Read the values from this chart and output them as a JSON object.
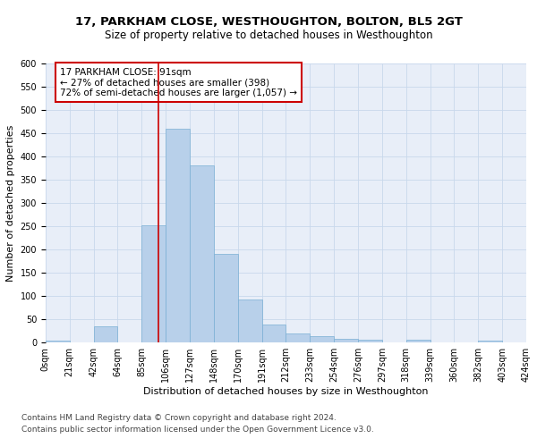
{
  "title": "17, PARKHAM CLOSE, WESTHOUGHTON, BOLTON, BL5 2GT",
  "subtitle": "Size of property relative to detached houses in Westhoughton",
  "xlabel": "Distribution of detached houses by size in Westhoughton",
  "ylabel": "Number of detached properties",
  "footnote1": "Contains HM Land Registry data © Crown copyright and database right 2024.",
  "footnote2": "Contains public sector information licensed under the Open Government Licence v3.0.",
  "annotation_line1": "17 PARKHAM CLOSE: 91sqm",
  "annotation_line2": "← 27% of detached houses are smaller (398)",
  "annotation_line3": "72% of semi-detached houses are larger (1,057) →",
  "bar_values": [
    5,
    0,
    35,
    0,
    252,
    460,
    380,
    190,
    92,
    38,
    20,
    13,
    8,
    6,
    0,
    6,
    0,
    0,
    5,
    0
  ],
  "bar_labels": [
    "0sqm",
    "21sqm",
    "42sqm",
    "64sqm",
    "85sqm",
    "106sqm",
    "127sqm",
    "148sqm",
    "170sqm",
    "191sqm",
    "212sqm",
    "233sqm",
    "254sqm",
    "276sqm",
    "297sqm",
    "318sqm",
    "339sqm",
    "360sqm",
    "382sqm",
    "403sqm",
    "424sqm"
  ],
  "bar_color": "#b8d0ea",
  "bar_edge_color": "#7aafd4",
  "vline_color": "#cc0000",
  "vline_x": 4.7,
  "annotation_box_color": "#cc0000",
  "grid_color": "#c8d8ec",
  "bg_color": "#e8eef8",
  "ylim": [
    0,
    600
  ],
  "yticks": [
    0,
    50,
    100,
    150,
    200,
    250,
    300,
    350,
    400,
    450,
    500,
    550,
    600
  ],
  "title_fontsize": 9.5,
  "subtitle_fontsize": 8.5,
  "xlabel_fontsize": 8,
  "ylabel_fontsize": 8,
  "tick_fontsize": 7,
  "annotation_fontsize": 7.5,
  "footnote_fontsize": 6.5
}
